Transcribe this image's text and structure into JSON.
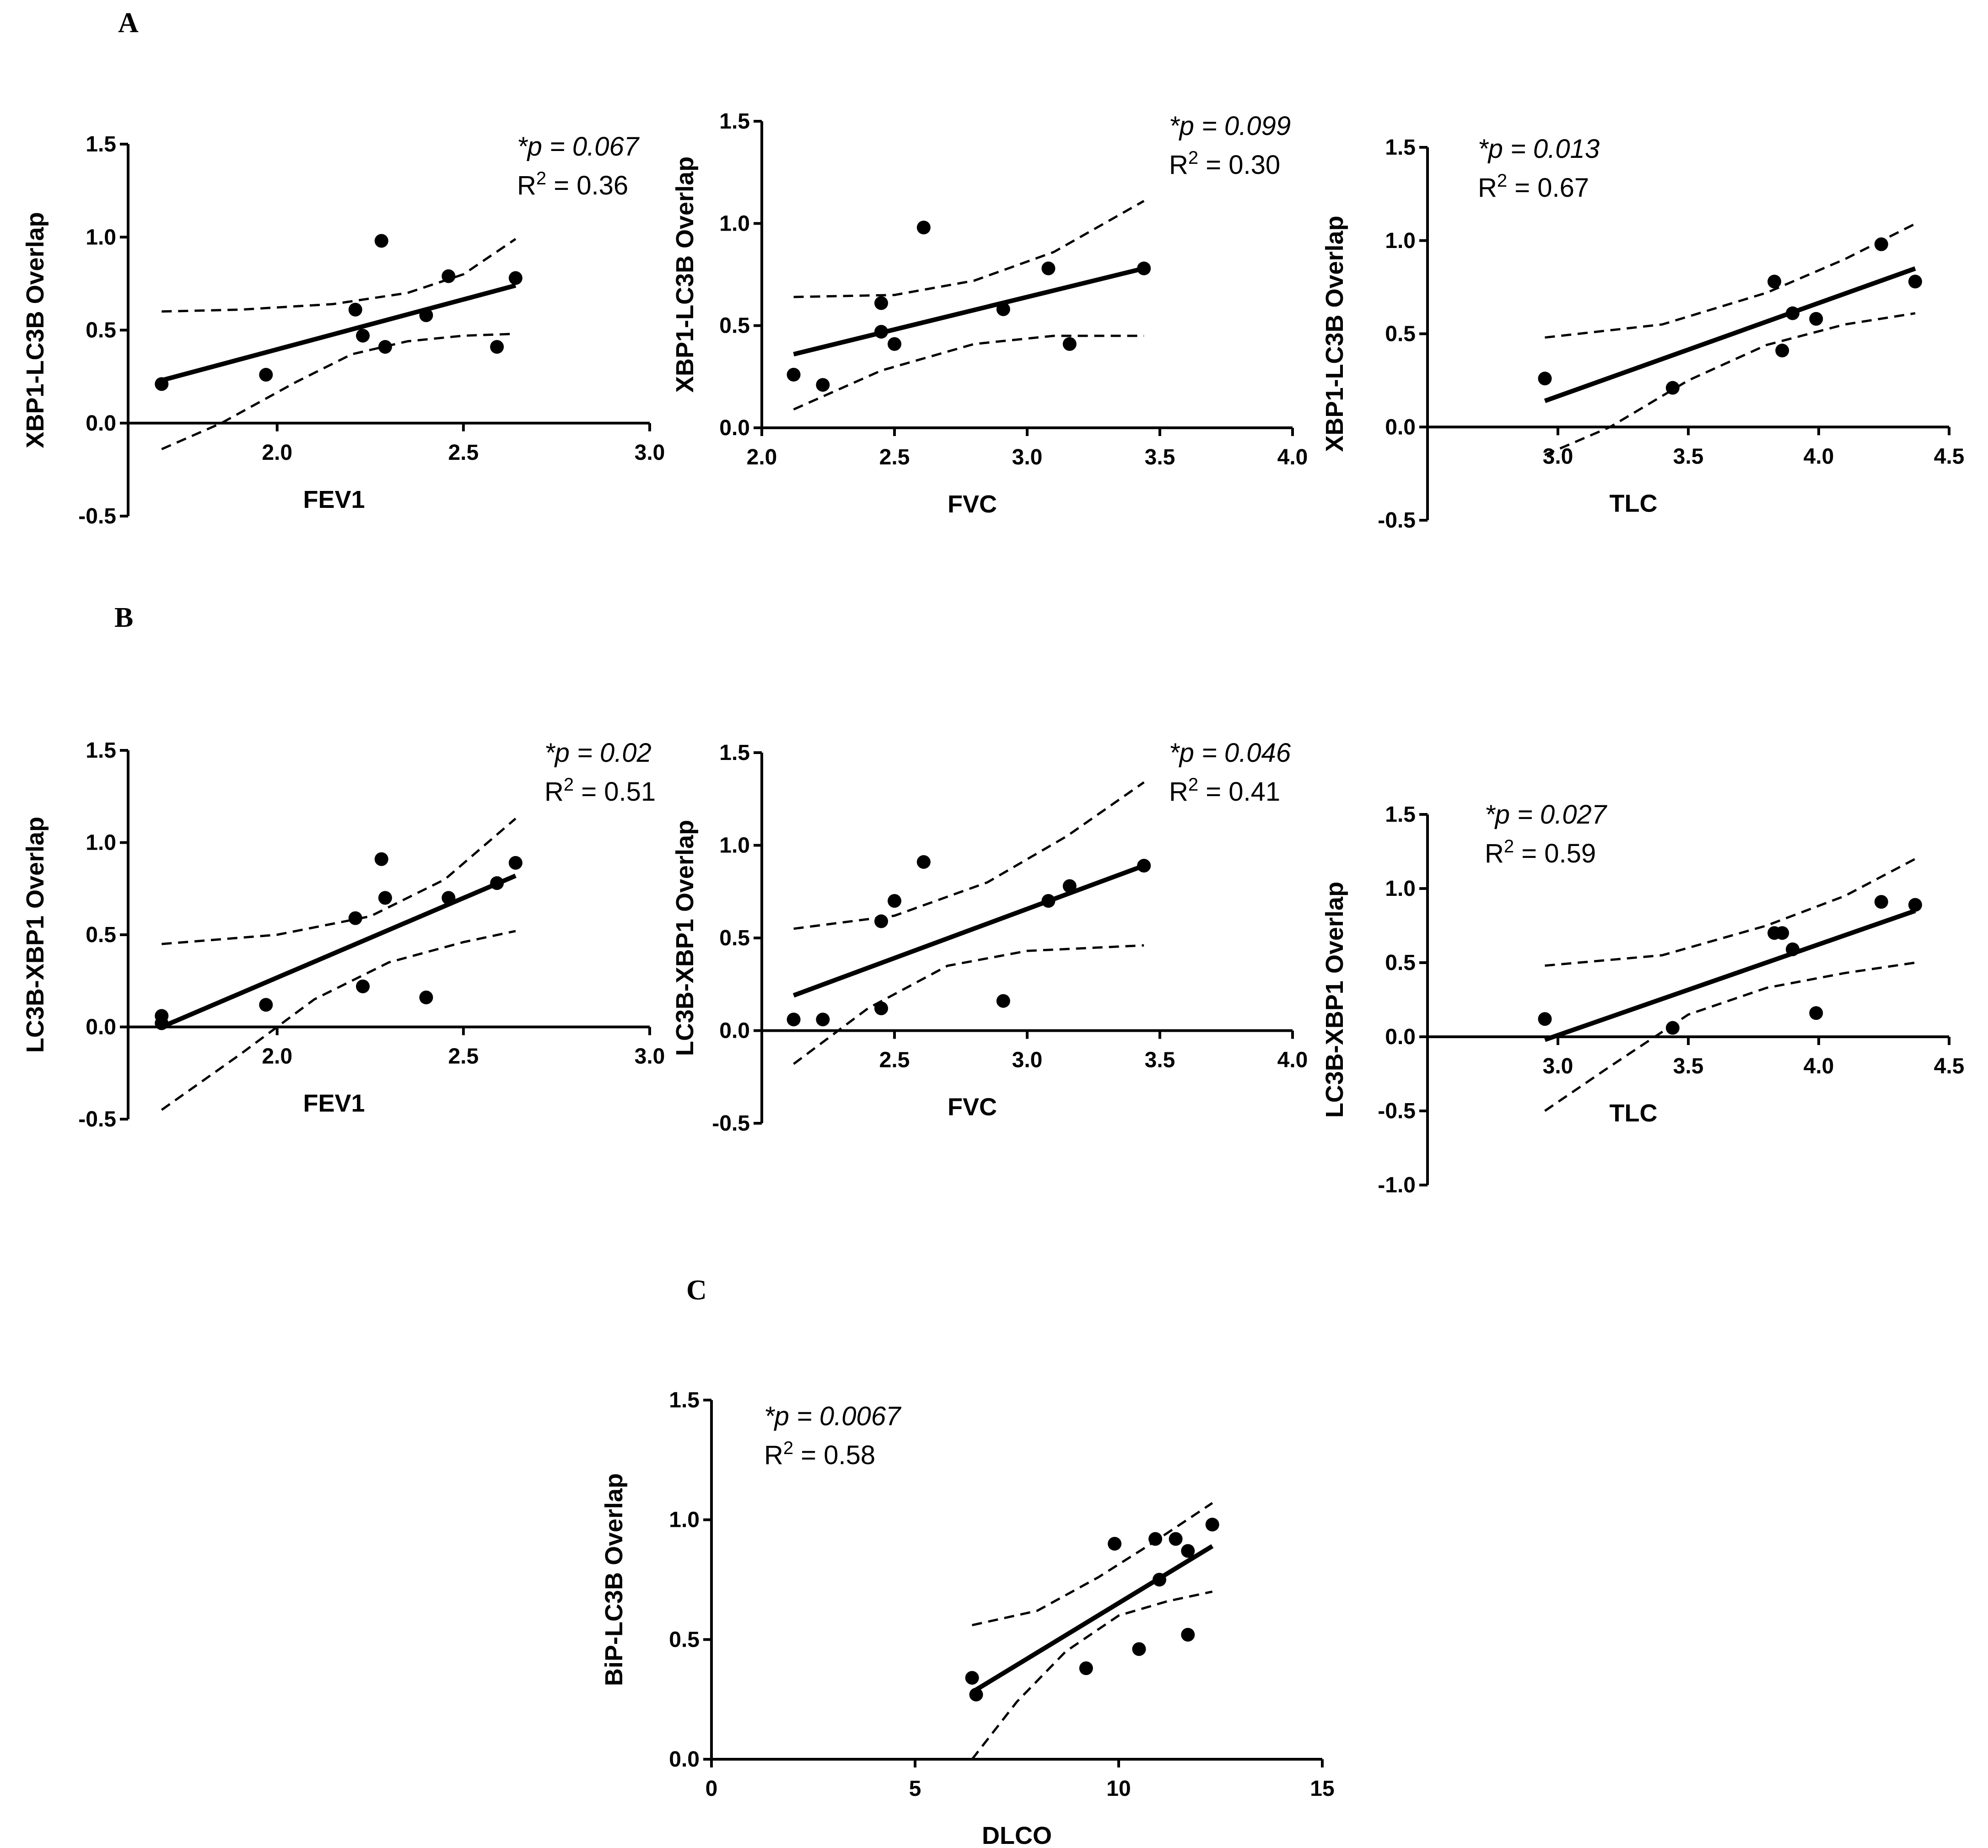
{
  "panels": [
    {
      "id": "A",
      "label": "A"
    },
    {
      "id": "B",
      "label": "B"
    },
    {
      "id": "C",
      "label": "C"
    }
  ],
  "chart_data": [
    {
      "type": "scatter",
      "panel": "A",
      "title": "",
      "xlabel": "FEV1",
      "ylabel": "XBP1-LC3B Overlap",
      "xlim": [
        1.6,
        3.0
      ],
      "ylim": [
        -0.5,
        1.5
      ],
      "xticks": [
        "2.0",
        "2.5",
        "3.0"
      ],
      "yticks": [
        "-0.5",
        "0.0",
        "0.5",
        "1.0",
        "1.5"
      ],
      "p_value": "*p = 0.067",
      "r2": "R2 = 0.36",
      "points": [
        [
          1.69,
          0.21
        ],
        [
          1.97,
          0.26
        ],
        [
          2.21,
          0.61
        ],
        [
          2.23,
          0.47
        ],
        [
          2.28,
          0.98
        ],
        [
          2.29,
          0.41
        ],
        [
          2.4,
          0.58
        ],
        [
          2.46,
          0.79
        ],
        [
          2.59,
          0.41
        ],
        [
          2.64,
          0.78
        ]
      ],
      "fit_line": [
        [
          1.69,
          0.23
        ],
        [
          2.64,
          0.74
        ]
      ],
      "ci_upper": [
        [
          1.69,
          0.6
        ],
        [
          1.9,
          0.61
        ],
        [
          2.15,
          0.64
        ],
        [
          2.35,
          0.7
        ],
        [
          2.5,
          0.8
        ],
        [
          2.64,
          0.99
        ]
      ],
      "ci_lower": [
        [
          1.69,
          -0.14
        ],
        [
          1.85,
          0.0
        ],
        [
          2.05,
          0.22
        ],
        [
          2.2,
          0.37
        ],
        [
          2.35,
          0.44
        ],
        [
          2.5,
          0.47
        ],
        [
          2.64,
          0.48
        ]
      ]
    },
    {
      "type": "scatter",
      "panel": "A",
      "title": "",
      "xlabel": "FVC",
      "ylabel": "XBP1-LC3B Overlap",
      "xlim": [
        2.0,
        4.0
      ],
      "ylim": [
        0.0,
        1.5
      ],
      "xticks": [
        "2.0",
        "2.5",
        "3.0",
        "3.5",
        "4.0"
      ],
      "yticks": [
        "0.0",
        "0.5",
        "1.0",
        "1.5"
      ],
      "p_value": "*p = 0.099",
      "r2": "R2 = 0.30",
      "points": [
        [
          2.12,
          0.26
        ],
        [
          2.23,
          0.21
        ],
        [
          2.45,
          0.61
        ],
        [
          2.45,
          0.47
        ],
        [
          2.5,
          0.41
        ],
        [
          2.61,
          0.98
        ],
        [
          2.91,
          0.58
        ],
        [
          3.08,
          0.78
        ],
        [
          3.16,
          0.41
        ],
        [
          3.44,
          0.78
        ]
      ],
      "fit_line": [
        [
          2.12,
          0.36
        ],
        [
          3.44,
          0.78
        ]
      ],
      "ci_upper": [
        [
          2.12,
          0.64
        ],
        [
          2.5,
          0.65
        ],
        [
          2.8,
          0.72
        ],
        [
          3.1,
          0.86
        ],
        [
          3.44,
          1.11
        ]
      ],
      "ci_lower": [
        [
          2.12,
          0.09
        ],
        [
          2.45,
          0.28
        ],
        [
          2.8,
          0.41
        ],
        [
          3.1,
          0.45
        ],
        [
          3.44,
          0.45
        ]
      ]
    },
    {
      "type": "scatter",
      "panel": "A",
      "title": "",
      "xlabel": "TLC",
      "ylabel": "XBP1-LC3B Overlap",
      "xlim": [
        2.5,
        4.5
      ],
      "ylim": [
        -0.5,
        1.5
      ],
      "xticks": [
        "3.0",
        "3.5",
        "4.0",
        "4.5"
      ],
      "yticks": [
        "-0.5",
        "0.0",
        "0.5",
        "1.0",
        "1.5"
      ],
      "p_value": "*p = 0.013",
      "r2": "R2 = 0.67",
      "points": [
        [
          2.95,
          0.26
        ],
        [
          3.44,
          0.21
        ],
        [
          3.83,
          0.78
        ],
        [
          3.86,
          0.41
        ],
        [
          3.9,
          0.61
        ],
        [
          3.99,
          0.58
        ],
        [
          4.24,
          0.98
        ],
        [
          4.37,
          0.78
        ]
      ],
      "fit_line": [
        [
          2.95,
          0.14
        ],
        [
          4.37,
          0.85
        ]
      ],
      "ci_upper": [
        [
          2.95,
          0.48
        ],
        [
          3.4,
          0.55
        ],
        [
          3.8,
          0.72
        ],
        [
          4.1,
          0.9
        ],
        [
          4.37,
          1.09
        ]
      ],
      "ci_lower": [
        [
          2.95,
          -0.15
        ],
        [
          3.2,
          0.0
        ],
        [
          3.5,
          0.25
        ],
        [
          3.8,
          0.44
        ],
        [
          4.1,
          0.55
        ],
        [
          4.37,
          0.61
        ]
      ]
    },
    {
      "type": "scatter",
      "panel": "B",
      "title": "",
      "xlabel": "FEV1",
      "ylabel": "LC3B-XBP1 Overlap",
      "xlim": [
        1.6,
        3.0
      ],
      "ylim": [
        -0.5,
        1.5
      ],
      "xticks": [
        "2.0",
        "2.5",
        "3.0"
      ],
      "yticks": [
        "-0.5",
        "0.0",
        "0.5",
        "1.0",
        "1.5"
      ],
      "p_value": "*p = 0.02",
      "r2": "R2 = 0.51",
      "points": [
        [
          1.69,
          0.06
        ],
        [
          1.69,
          0.02
        ],
        [
          1.97,
          0.12
        ],
        [
          2.21,
          0.59
        ],
        [
          2.23,
          0.22
        ],
        [
          2.28,
          0.91
        ],
        [
          2.29,
          0.7
        ],
        [
          2.4,
          0.16
        ],
        [
          2.46,
          0.7
        ],
        [
          2.59,
          0.78
        ],
        [
          2.64,
          0.89
        ]
      ],
      "fit_line": [
        [
          1.69,
          0.0
        ],
        [
          2.64,
          0.82
        ]
      ],
      "ci_upper": [
        [
          1.69,
          0.45
        ],
        [
          2.0,
          0.5
        ],
        [
          2.25,
          0.6
        ],
        [
          2.45,
          0.8
        ],
        [
          2.64,
          1.13
        ]
      ],
      "ci_lower": [
        [
          1.69,
          -0.45
        ],
        [
          1.9,
          -0.15
        ],
        [
          2.1,
          0.15
        ],
        [
          2.3,
          0.35
        ],
        [
          2.5,
          0.46
        ],
        [
          2.64,
          0.52
        ]
      ]
    },
    {
      "type": "scatter",
      "panel": "B",
      "title": "",
      "xlabel": "FVC",
      "ylabel": "LC3B-XBP1 Overlap",
      "xlim": [
        2.0,
        4.0
      ],
      "ylim": [
        -0.5,
        1.5
      ],
      "xticks": [
        "2.5",
        "3.0",
        "3.5",
        "4.0"
      ],
      "yticks": [
        "-0.5",
        "0.0",
        "0.5",
        "1.0",
        "1.5"
      ],
      "p_value": "*p = 0.046",
      "r2": "R2 = 0.41",
      "points": [
        [
          2.12,
          0.06
        ],
        [
          2.23,
          0.06
        ],
        [
          2.45,
          0.59
        ],
        [
          2.45,
          0.12
        ],
        [
          2.5,
          0.7
        ],
        [
          2.61,
          0.91
        ],
        [
          2.91,
          0.16
        ],
        [
          3.08,
          0.7
        ],
        [
          3.16,
          0.78
        ],
        [
          3.44,
          0.89
        ]
      ],
      "fit_line": [
        [
          2.12,
          0.19
        ],
        [
          3.44,
          0.89
        ]
      ],
      "ci_upper": [
        [
          2.12,
          0.55
        ],
        [
          2.5,
          0.62
        ],
        [
          2.85,
          0.8
        ],
        [
          3.15,
          1.05
        ],
        [
          3.44,
          1.34
        ]
      ],
      "ci_lower": [
        [
          2.12,
          -0.18
        ],
        [
          2.4,
          0.12
        ],
        [
          2.7,
          0.35
        ],
        [
          3.0,
          0.43
        ],
        [
          3.44,
          0.46
        ]
      ]
    },
    {
      "type": "scatter",
      "panel": "B",
      "title": "",
      "xlabel": "TLC",
      "ylabel": "LC3B-XBP1 Overlap",
      "xlim": [
        2.5,
        4.5
      ],
      "ylim": [
        -1.0,
        1.5
      ],
      "xticks": [
        "3.0",
        "3.5",
        "4.0",
        "4.5"
      ],
      "yticks": [
        "-1.0",
        "-0.5",
        "0.0",
        "0.5",
        "1.0",
        "1.5"
      ],
      "p_value": "*p = 0.027",
      "r2": "R2 = 0.59",
      "points": [
        [
          2.95,
          0.12
        ],
        [
          3.44,
          0.06
        ],
        [
          3.83,
          0.7
        ],
        [
          3.86,
          0.7
        ],
        [
          3.9,
          0.59
        ],
        [
          3.99,
          0.16
        ],
        [
          4.24,
          0.91
        ],
        [
          4.37,
          0.89
        ]
      ],
      "fit_line": [
        [
          2.95,
          -0.02
        ],
        [
          4.37,
          0.85
        ]
      ],
      "ci_upper": [
        [
          2.95,
          0.48
        ],
        [
          3.4,
          0.55
        ],
        [
          3.8,
          0.75
        ],
        [
          4.1,
          0.95
        ],
        [
          4.37,
          1.2
        ]
      ],
      "ci_lower": [
        [
          2.95,
          -0.5
        ],
        [
          3.2,
          -0.2
        ],
        [
          3.5,
          0.15
        ],
        [
          3.8,
          0.33
        ],
        [
          4.1,
          0.43
        ],
        [
          4.37,
          0.5
        ]
      ]
    },
    {
      "type": "scatter",
      "panel": "C",
      "title": "",
      "xlabel": "DLCO",
      "ylabel": "BiP-LC3B Overlap",
      "xlim": [
        0,
        15
      ],
      "ylim": [
        0.0,
        1.5
      ],
      "xticks": [
        "0",
        "5",
        "10",
        "15"
      ],
      "yticks": [
        "0.0",
        "0.5",
        "1.0",
        "1.5"
      ],
      "p_value": "*p = 0.0067",
      "r2": "R2 = 0.58",
      "points": [
        [
          6.4,
          0.34
        ],
        [
          6.5,
          0.27
        ],
        [
          9.2,
          0.38
        ],
        [
          9.9,
          0.9
        ],
        [
          10.5,
          0.46
        ],
        [
          10.9,
          0.92
        ],
        [
          11.0,
          0.75
        ],
        [
          11.4,
          0.92
        ],
        [
          11.7,
          0.87
        ],
        [
          11.7,
          0.52
        ],
        [
          12.3,
          0.98
        ]
      ],
      "fit_line": [
        [
          6.4,
          0.28
        ],
        [
          12.3,
          0.89
        ]
      ],
      "ci_upper": [
        [
          6.4,
          0.56
        ],
        [
          8.0,
          0.62
        ],
        [
          9.5,
          0.76
        ],
        [
          10.8,
          0.9
        ],
        [
          12.3,
          1.07
        ]
      ],
      "ci_lower": [
        [
          6.4,
          0.0
        ],
        [
          7.5,
          0.24
        ],
        [
          8.7,
          0.45
        ],
        [
          10.0,
          0.6
        ],
        [
          11.2,
          0.66
        ],
        [
          12.3,
          0.7
        ]
      ]
    }
  ]
}
